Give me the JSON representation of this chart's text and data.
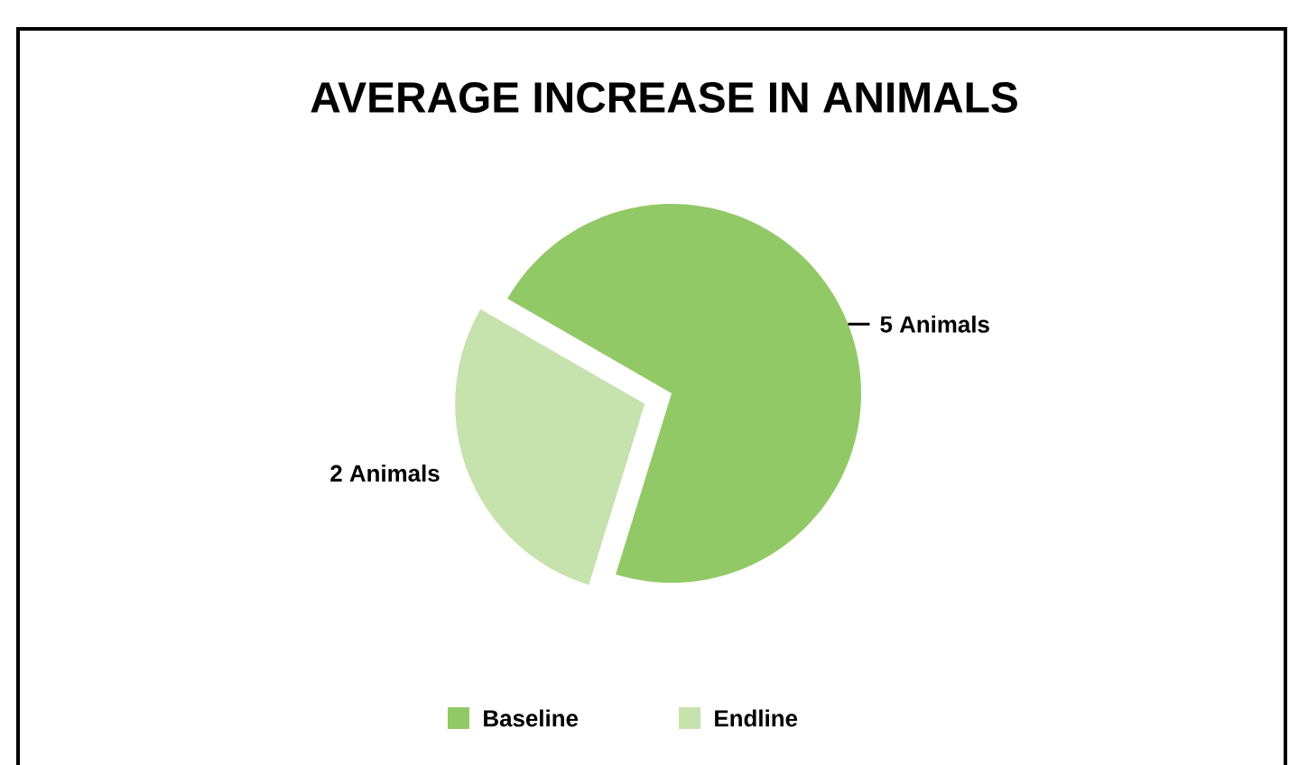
{
  "chart_data": {
    "type": "pie",
    "title": "AVERAGE INCREASE IN ANIMALS",
    "categories": [
      "Baseline",
      "Endline"
    ],
    "values": [
      5,
      2
    ],
    "colors": [
      "#92c967",
      "#c6e2ad"
    ],
    "value_labels": [
      "5 Animals",
      "2 Animals"
    ],
    "legend": "bottom"
  }
}
